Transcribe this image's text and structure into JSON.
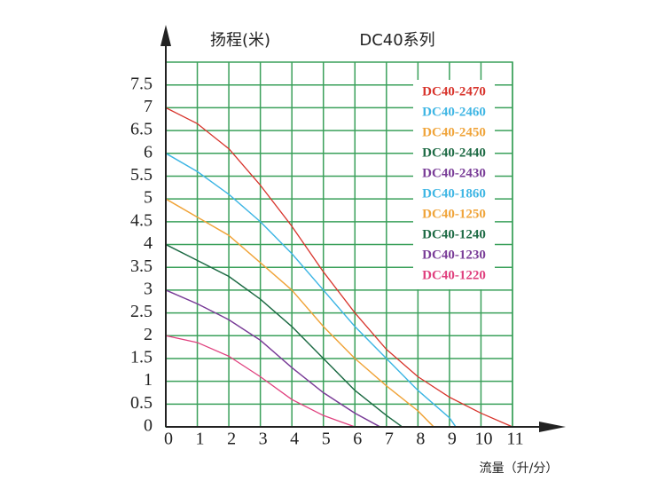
{
  "chart_data": {
    "type": "line",
    "title": "DC40系列",
    "y_label": "扬程(米)",
    "x_label": "流量（升/分）",
    "xlim": [
      0,
      11
    ],
    "ylim": [
      0,
      8
    ],
    "xticks": [
      0,
      1,
      2,
      3,
      4,
      5,
      6,
      7,
      8,
      9,
      10,
      11
    ],
    "yticks": [
      0,
      0.5,
      1,
      1.5,
      2,
      2.5,
      3,
      3.5,
      4,
      4.5,
      5,
      5.5,
      6,
      6.5,
      7,
      7.5
    ],
    "grid": true,
    "grid_color": "#3aa05a",
    "legend": "upper right",
    "series": [
      {
        "name": "DC40-2470",
        "color": "#d8342c",
        "x": [
          0,
          1,
          2,
          3,
          4,
          5,
          6,
          7,
          8,
          9,
          10,
          11
        ],
        "values": [
          7,
          6.65,
          6.1,
          5.3,
          4.4,
          3.4,
          2.5,
          1.7,
          1.1,
          0.65,
          0.3,
          0
        ]
      },
      {
        "name": "DC40-2460",
        "color": "#3fb6e4",
        "x": [
          0,
          1,
          2,
          3,
          4,
          5,
          6,
          7,
          8,
          9,
          9.2
        ],
        "values": [
          6,
          5.6,
          5.1,
          4.5,
          3.8,
          3,
          2.2,
          1.5,
          0.8,
          0.2,
          0
        ]
      },
      {
        "name": "DC40-2450",
        "color": "#f0a43a",
        "x": [
          0,
          1,
          2,
          3,
          4,
          5,
          6,
          7,
          8,
          8.5
        ],
        "values": [
          5,
          4.6,
          4.2,
          3.6,
          3,
          2.2,
          1.5,
          0.9,
          0.35,
          0
        ]
      },
      {
        "name": "DC40-2440",
        "color": "#1e6b45",
        "x": [
          0,
          1,
          2,
          3,
          4,
          5,
          6,
          7,
          7.5
        ],
        "values": [
          4,
          3.65,
          3.3,
          2.8,
          2.2,
          1.5,
          0.8,
          0.25,
          0
        ]
      },
      {
        "name": "DC40-2430",
        "color": "#7a3d98",
        "x": [
          0,
          1,
          2,
          3,
          4,
          5,
          6,
          6.8
        ],
        "values": [
          3,
          2.7,
          2.35,
          1.9,
          1.3,
          0.75,
          0.3,
          0
        ]
      },
      {
        "name": "DC40-1860",
        "color": "#3fb6e4",
        "x": [
          0,
          1,
          2,
          3,
          4,
          5,
          6,
          7,
          8,
          9,
          9.2
        ],
        "values": [
          6,
          5.6,
          5.1,
          4.5,
          3.8,
          3,
          2.2,
          1.5,
          0.8,
          0.2,
          0
        ]
      },
      {
        "name": "DC40-1250",
        "color": "#f0a43a",
        "x": [
          0,
          1,
          2,
          3,
          4,
          5,
          6,
          7,
          8,
          8.5
        ],
        "values": [
          5,
          4.6,
          4.2,
          3.6,
          3,
          2.2,
          1.5,
          0.9,
          0.35,
          0
        ]
      },
      {
        "name": "DC40-1240",
        "color": "#1e6b45",
        "x": [
          0,
          1,
          2,
          3,
          4,
          5,
          6,
          7,
          7.5
        ],
        "values": [
          4,
          3.65,
          3.3,
          2.8,
          2.2,
          1.5,
          0.8,
          0.25,
          0
        ]
      },
      {
        "name": "DC40-1230",
        "color": "#7a3d98",
        "x": [
          0,
          1,
          2,
          3,
          4,
          5,
          6,
          6.8
        ],
        "values": [
          3,
          2.7,
          2.35,
          1.9,
          1.3,
          0.75,
          0.3,
          0
        ]
      },
      {
        "name": "DC40-1220",
        "color": "#e0407e",
        "x": [
          0,
          1,
          2,
          3,
          4,
          5,
          6
        ],
        "values": [
          2,
          1.85,
          1.55,
          1.1,
          0.6,
          0.25,
          0
        ]
      }
    ]
  }
}
